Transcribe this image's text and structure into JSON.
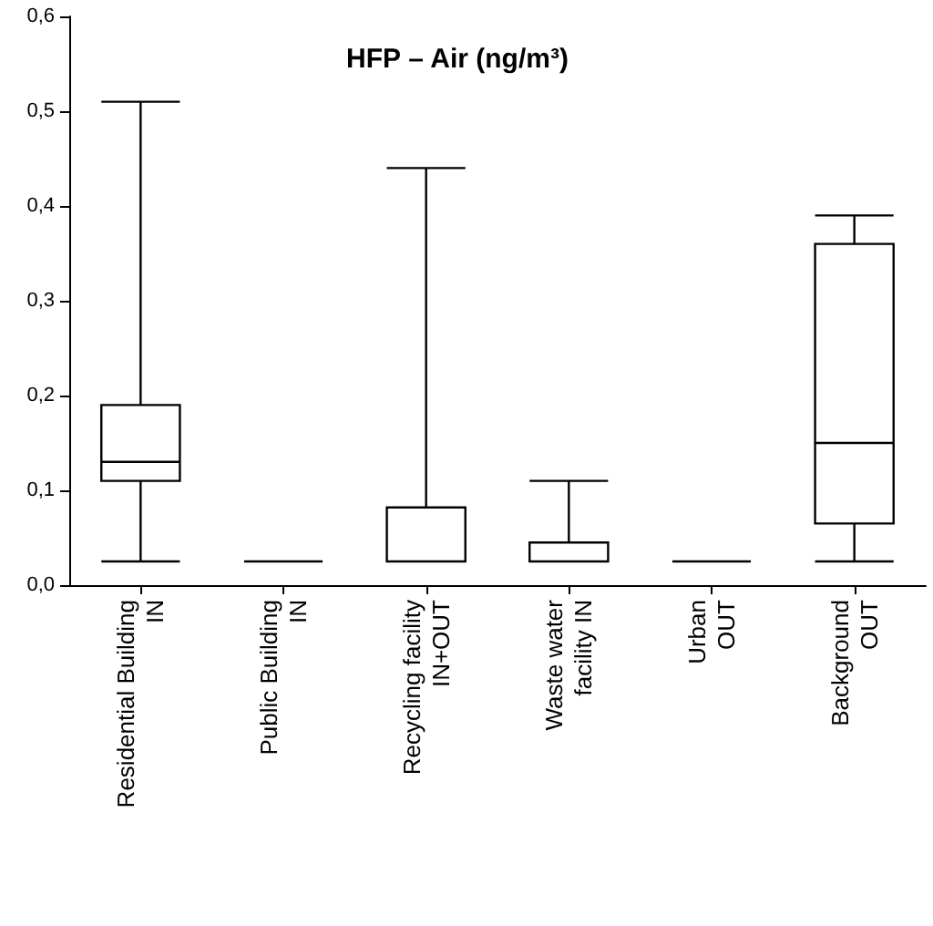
{
  "chart_data": {
    "type": "box",
    "title": "HFP – Air (ng/m³)",
    "categories": [
      "Residential Building\nIN",
      "Public Building\nIN",
      "Recycling facility\nIN+OUT",
      "Waste water\nfacility IN",
      "Urban\nOUT",
      "Background\nOUT"
    ],
    "boxes": [
      {
        "low": 0.025,
        "q1": 0.11,
        "median": 0.13,
        "q3": 0.19,
        "high": 0.51
      },
      {
        "low": 0.025,
        "q1": 0.025,
        "median": 0.025,
        "q3": 0.025,
        "high": 0.025
      },
      {
        "low": 0.025,
        "q1": 0.025,
        "median": 0.025,
        "q3": 0.082,
        "high": 0.44
      },
      {
        "low": 0.025,
        "q1": 0.025,
        "median": 0.025,
        "q3": 0.045,
        "high": 0.11
      },
      {
        "low": 0.025,
        "q1": 0.025,
        "median": 0.025,
        "q3": 0.025,
        "high": 0.025
      },
      {
        "low": 0.025,
        "q1": 0.065,
        "median": 0.15,
        "q3": 0.36,
        "high": 0.39
      }
    ],
    "color": "#000000",
    "ylim": [
      0,
      0.6
    ],
    "yticks": [
      {
        "value": 0,
        "label": "0,0"
      },
      {
        "value": 0.1,
        "label": "0,1"
      },
      {
        "value": 0.2,
        "label": "0,2"
      },
      {
        "value": 0.3,
        "label": "0,3"
      },
      {
        "value": 0.4,
        "label": "0,4"
      },
      {
        "value": 0.5,
        "label": "0,5"
      },
      {
        "value": 0.6,
        "label": "0,6"
      }
    ],
    "grid": false
  }
}
